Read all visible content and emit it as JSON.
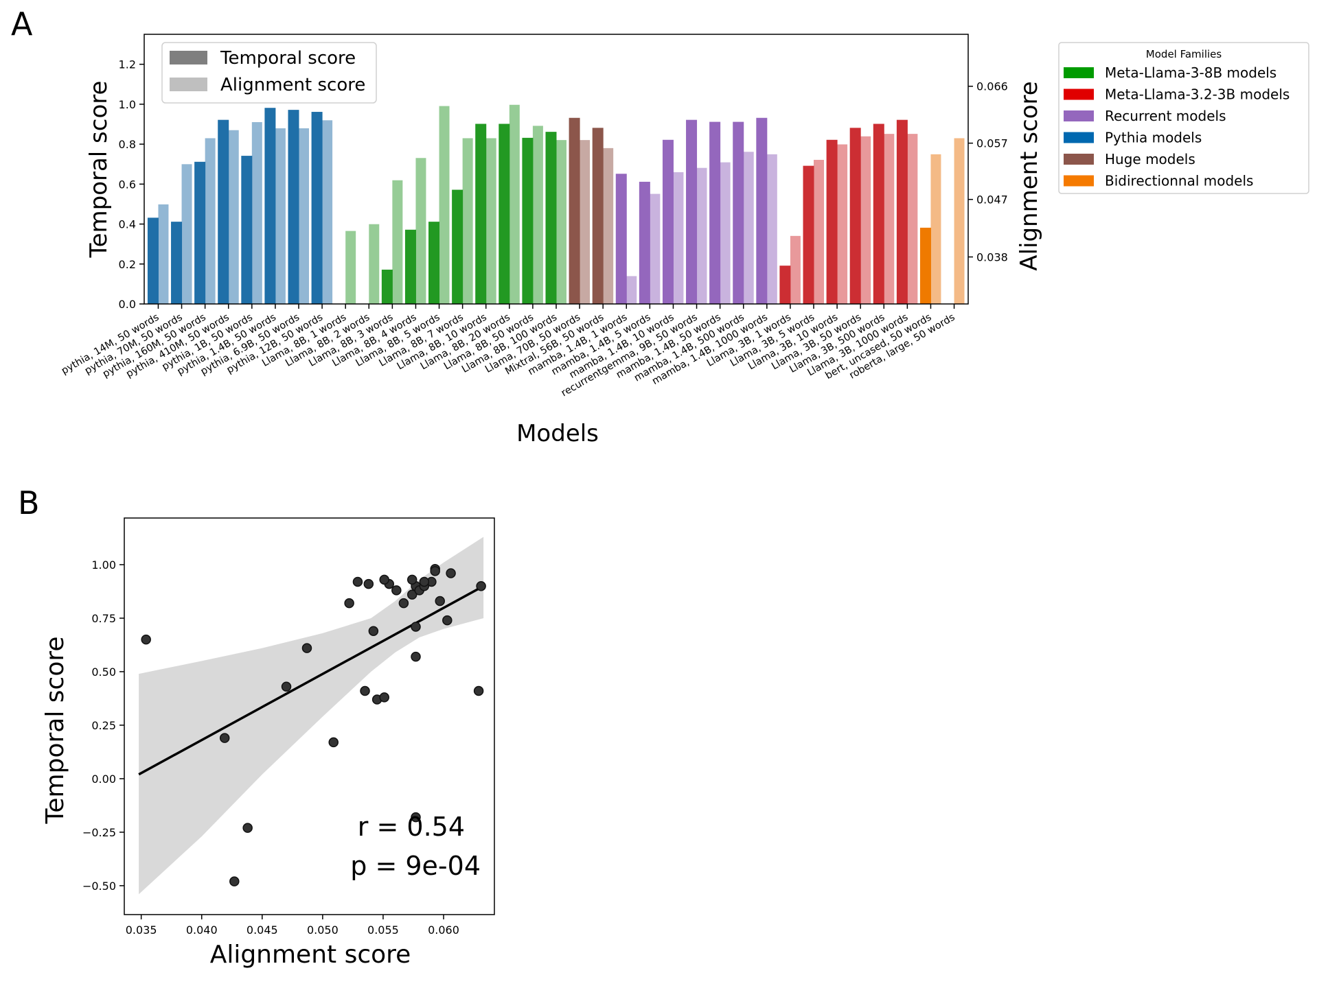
{
  "panels": {
    "a_label": "A",
    "b_label": "B"
  },
  "chart_data": [
    {
      "type": "bar",
      "panel": "A",
      "xlabel": "Models",
      "ylabel": "Temporal score",
      "ylabel_right": "Alignment score",
      "ylim": [
        0,
        1.35
      ],
      "ylim_right": [
        0.0309,
        0.0745
      ],
      "yticks": [
        "0.0",
        "0.2",
        "0.4",
        "0.6",
        "0.8",
        "1.0",
        "1.2"
      ],
      "yticks_right": [
        "0.038",
        "0.047",
        "0.057",
        "0.066"
      ],
      "yticks_right_values": [
        0.0385,
        0.0478,
        0.0569,
        0.0661
      ],
      "legend_score": {
        "placement": "top-left",
        "items": [
          {
            "label": "Temporal score",
            "color": "#7f7f7f"
          },
          {
            "label": "Alignment score",
            "color": "#bfbfbf"
          }
        ]
      },
      "legend_families": {
        "title": "Model Families",
        "placement": "outside-right",
        "items": [
          {
            "key": "llama8b",
            "label": "Meta-Llama-3-8B models",
            "color": "#009b00"
          },
          {
            "key": "llama3b",
            "label": "Meta-Llama-3.2-3B models",
            "color": "#e00000"
          },
          {
            "key": "recurrent",
            "label": "Recurrent models",
            "color": "#9467bd"
          },
          {
            "key": "pythia",
            "label": "Pythia models",
            "color": "#0068b0"
          },
          {
            "key": "huge",
            "label": "Huge models",
            "color": "#8c564b"
          },
          {
            "key": "bidirectional",
            "label": "Bidirectionnal models",
            "color": "#f57a00"
          }
        ]
      },
      "family_colors": {
        "pythia": {
          "dark": "#1f6fa8",
          "light": "#92b7d4"
        },
        "llama8b": {
          "dark": "#229922",
          "light": "#96cc96"
        },
        "huge": {
          "dark": "#8c564b",
          "light": "#c7a9a3"
        },
        "recurrent": {
          "dark": "#9467bd",
          "light": "#c9b3de"
        },
        "llama3b": {
          "dark": "#cc2e33",
          "light": "#e8999b"
        },
        "bidirectional": {
          "dark": "#ef7a00",
          "light": "#f4ba86"
        }
      },
      "models": [
        {
          "label": "pythia, 14M, 50 words",
          "family": "pythia",
          "temporal": 0.43,
          "alignment": 0.047
        },
        {
          "label": "pythia, 70M, 50 words",
          "family": "pythia",
          "temporal": 0.41,
          "alignment": 0.0535
        },
        {
          "label": "pythia, 160M, 50 words",
          "family": "pythia",
          "temporal": 0.71,
          "alignment": 0.0577
        },
        {
          "label": "pythia, 410M, 50 words",
          "family": "pythia",
          "temporal": 0.92,
          "alignment": 0.059
        },
        {
          "label": "pythia, 1B, 50 words",
          "family": "pythia",
          "temporal": 0.74,
          "alignment": 0.0603
        },
        {
          "label": "pythia, 1.4B, 50 words",
          "family": "pythia",
          "temporal": 0.98,
          "alignment": 0.0593
        },
        {
          "label": "pythia, 6.9B, 50 words",
          "family": "pythia",
          "temporal": 0.97,
          "alignment": 0.0593
        },
        {
          "label": "pythia, 12B, 50 words",
          "family": "pythia",
          "temporal": 0.96,
          "alignment": 0.0606
        },
        {
          "label": "Llama, 8B, 1 words",
          "family": "llama8b",
          "temporal": -0.48,
          "alignment": 0.0427
        },
        {
          "label": "Llama, 8B, 2 words",
          "family": "llama8b",
          "temporal": -0.23,
          "alignment": 0.0438
        },
        {
          "label": "Llama, 8B, 3 words",
          "family": "llama8b",
          "temporal": 0.17,
          "alignment": 0.0509
        },
        {
          "label": "Llama, 8B, 4 words",
          "family": "llama8b",
          "temporal": 0.37,
          "alignment": 0.0545
        },
        {
          "label": "Llama, 8B, 5 words",
          "family": "llama8b",
          "temporal": 0.41,
          "alignment": 0.0629
        },
        {
          "label": "Llama, 8B, 7 words",
          "family": "llama8b",
          "temporal": 0.57,
          "alignment": 0.0577
        },
        {
          "label": "Llama, 8B, 10 words",
          "family": "llama8b",
          "temporal": 0.9,
          "alignment": 0.0577
        },
        {
          "label": "Llama, 8B, 20 words",
          "family": "llama8b",
          "temporal": 0.9,
          "alignment": 0.0631
        },
        {
          "label": "Llama, 8B, 50 words",
          "family": "llama8b",
          "temporal": 0.83,
          "alignment": 0.0597
        },
        {
          "label": "Llama, 8B, 100 words",
          "family": "llama8b",
          "temporal": 0.86,
          "alignment": 0.0574
        },
        {
          "label": "Llama, 70B, 50 words",
          "family": "huge",
          "temporal": 0.93,
          "alignment": 0.0574
        },
        {
          "label": "Mixtral, 56B, 50 words",
          "family": "huge",
          "temporal": 0.88,
          "alignment": 0.0561
        },
        {
          "label": "mamba, 1.4B, 1 words",
          "family": "recurrent",
          "temporal": 0.65,
          "alignment": 0.0354
        },
        {
          "label": "mamba, 1.4B, 5 words",
          "family": "recurrent",
          "temporal": 0.61,
          "alignment": 0.0487
        },
        {
          "label": "mamba, 1.4B, 10 words",
          "family": "recurrent",
          "temporal": 0.82,
          "alignment": 0.0522
        },
        {
          "label": "recurrentgemma, 9B, 50 words",
          "family": "recurrent",
          "temporal": 0.92,
          "alignment": 0.0529
        },
        {
          "label": "mamba, 1.4B, 50 words",
          "family": "recurrent",
          "temporal": 0.91,
          "alignment": 0.0538
        },
        {
          "label": "mamba, 1.4B, 500 words",
          "family": "recurrent",
          "temporal": 0.91,
          "alignment": 0.0555
        },
        {
          "label": "mamba, 1.4B, 1000 words",
          "family": "recurrent",
          "temporal": 0.93,
          "alignment": 0.0551
        },
        {
          "label": "Llama, 3B, 1 words",
          "family": "llama3b",
          "temporal": 0.19,
          "alignment": 0.0419
        },
        {
          "label": "Llama, 3B, 5 words",
          "family": "llama3b",
          "temporal": 0.69,
          "alignment": 0.0542
        },
        {
          "label": "Llama, 3B, 10 words",
          "family": "llama3b",
          "temporal": 0.82,
          "alignment": 0.0567
        },
        {
          "label": "Llama, 3B, 50 words",
          "family": "llama3b",
          "temporal": 0.88,
          "alignment": 0.058
        },
        {
          "label": "Llama, 3B, 500 words",
          "family": "llama3b",
          "temporal": 0.9,
          "alignment": 0.0584
        },
        {
          "label": "Llama, 3B, 1000 words",
          "family": "llama3b",
          "temporal": 0.92,
          "alignment": 0.0584
        },
        {
          "label": "bert, uncased, 50 words",
          "family": "bidirectional",
          "temporal": 0.38,
          "alignment": 0.0551
        },
        {
          "label": "roberta, large, 50 words",
          "family": "bidirectional",
          "temporal": -0.18,
          "alignment": 0.0577
        }
      ]
    },
    {
      "type": "scatter",
      "panel": "B",
      "xlabel": "Alignment score",
      "ylabel": "Temporal score",
      "xlim": [
        0.0336,
        0.0642
      ],
      "ylim": [
        -0.635,
        1.218
      ],
      "xticks": [
        "0.035",
        "0.040",
        "0.045",
        "0.050",
        "0.055",
        "0.060"
      ],
      "xtick_values": [
        0.035,
        0.04,
        0.045,
        0.05,
        0.055,
        0.06
      ],
      "yticks": [
        "−0.50",
        "−0.25",
        "0.00",
        "0.25",
        "0.50",
        "0.75",
        "1.00"
      ],
      "ytick_values": [
        -0.5,
        -0.25,
        0,
        0.25,
        0.5,
        0.75,
        1.0
      ],
      "points_source": "models (alignment, temporal) from panel A",
      "regression": {
        "x": [
          0.0348,
          0.0633
        ],
        "y": [
          0.02,
          0.9
        ]
      },
      "confidence_band": {
        "x": [
          0.0348,
          0.04,
          0.045,
          0.05,
          0.054,
          0.056,
          0.058,
          0.06,
          0.0633
        ],
        "upper": [
          0.49,
          0.55,
          0.61,
          0.68,
          0.75,
          0.83,
          0.93,
          1.01,
          1.13
        ],
        "lower": [
          -0.54,
          -0.27,
          0.02,
          0.29,
          0.5,
          0.59,
          0.66,
          0.7,
          0.75
        ]
      },
      "annotation": {
        "r": "r = 0.54",
        "p": "p = 9e-04"
      },
      "grid": false
    }
  ]
}
